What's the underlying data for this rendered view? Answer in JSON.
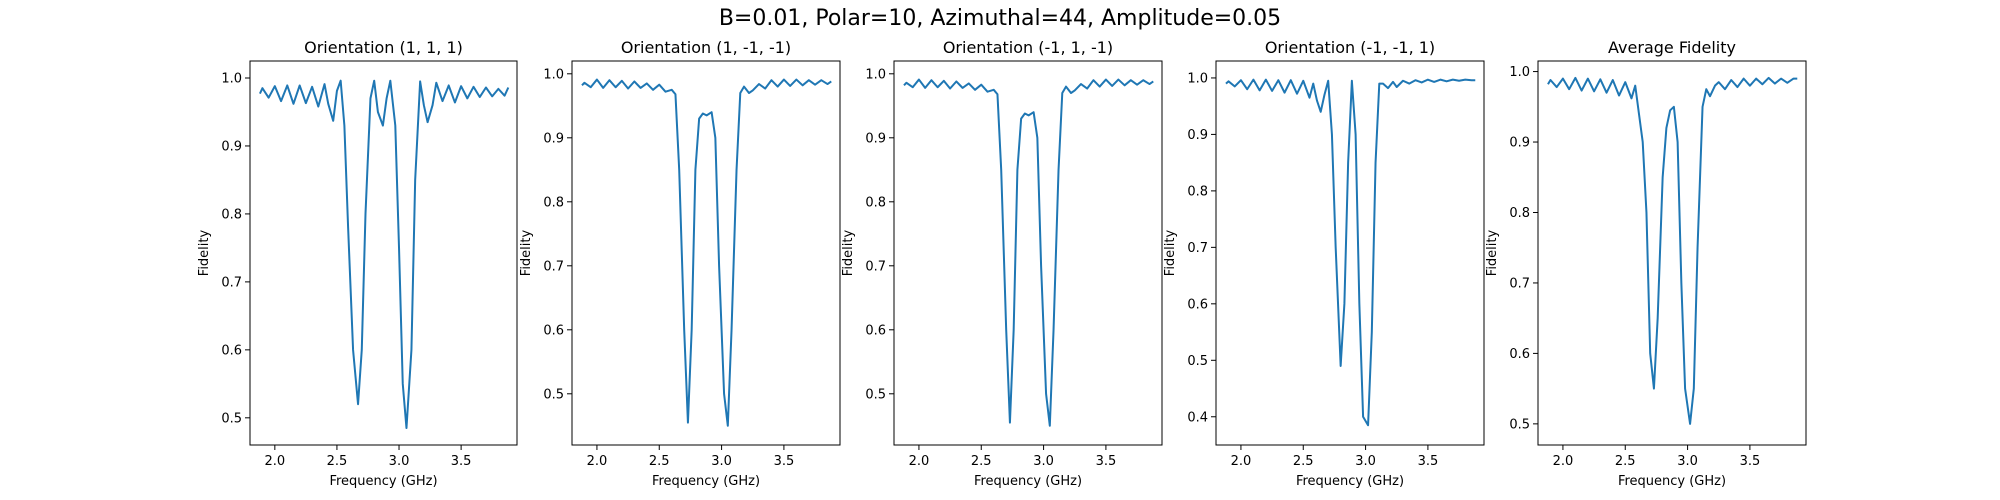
{
  "figure": {
    "suptitle": "B=0.01, Polar=10, Azimuthal=44, Amplitude=0.05"
  },
  "chart_data": [
    {
      "type": "line",
      "title": "Orientation (1, 1, 1)",
      "xlabel": "Frequency (GHz)",
      "ylabel": "Fidelity",
      "xlim": [
        1.8,
        3.95
      ],
      "ylim": [
        0.46,
        1.025
      ],
      "xticks": [
        "2.0",
        "2.5",
        "3.0",
        "3.5"
      ],
      "yticks": [
        "0.5",
        "0.6",
        "0.7",
        "0.8",
        "0.9",
        "1.0"
      ],
      "color": "#1f77b4",
      "x": [
        1.88,
        1.9,
        1.95,
        2.0,
        2.05,
        2.1,
        2.15,
        2.2,
        2.25,
        2.3,
        2.35,
        2.4,
        2.43,
        2.47,
        2.5,
        2.53,
        2.56,
        2.59,
        2.63,
        2.67,
        2.7,
        2.73,
        2.77,
        2.8,
        2.83,
        2.87,
        2.9,
        2.93,
        2.97,
        3.0,
        3.03,
        3.06,
        3.1,
        3.13,
        3.17,
        3.2,
        3.23,
        3.27,
        3.3,
        3.35,
        3.4,
        3.45,
        3.5,
        3.55,
        3.6,
        3.65,
        3.7,
        3.75,
        3.8,
        3.85,
        3.88
      ],
      "y": [
        0.977,
        0.985,
        0.971,
        0.988,
        0.966,
        0.989,
        0.962,
        0.989,
        0.963,
        0.987,
        0.958,
        0.991,
        0.962,
        0.937,
        0.981,
        0.996,
        0.93,
        0.78,
        0.6,
        0.52,
        0.6,
        0.8,
        0.97,
        0.996,
        0.95,
        0.93,
        0.97,
        0.996,
        0.93,
        0.75,
        0.55,
        0.485,
        0.6,
        0.85,
        0.995,
        0.96,
        0.935,
        0.96,
        0.993,
        0.966,
        0.989,
        0.964,
        0.988,
        0.97,
        0.987,
        0.972,
        0.986,
        0.973,
        0.984,
        0.974,
        0.986
      ]
    },
    {
      "type": "line",
      "title": "Orientation (1, -1, -1)",
      "xlabel": "Frequency (GHz)",
      "ylabel": "Fidelity",
      "xlim": [
        1.8,
        3.95
      ],
      "ylim": [
        0.42,
        1.02
      ],
      "xticks": [
        "2.0",
        "2.5",
        "3.0",
        "3.5"
      ],
      "yticks": [
        "0.5",
        "0.6",
        "0.7",
        "0.8",
        "0.9",
        "1.0"
      ],
      "color": "#1f77b4",
      "x": [
        1.88,
        1.9,
        1.95,
        2.0,
        2.05,
        2.1,
        2.15,
        2.2,
        2.25,
        2.3,
        2.35,
        2.4,
        2.45,
        2.5,
        2.55,
        2.6,
        2.63,
        2.66,
        2.7,
        2.73,
        2.76,
        2.79,
        2.82,
        2.85,
        2.88,
        2.92,
        2.95,
        2.98,
        3.02,
        3.05,
        3.08,
        3.12,
        3.15,
        3.18,
        3.22,
        3.25,
        3.3,
        3.35,
        3.4,
        3.45,
        3.5,
        3.55,
        3.6,
        3.65,
        3.7,
        3.75,
        3.8,
        3.85,
        3.88
      ],
      "y": [
        0.982,
        0.986,
        0.979,
        0.991,
        0.978,
        0.99,
        0.979,
        0.989,
        0.977,
        0.988,
        0.978,
        0.985,
        0.975,
        0.983,
        0.972,
        0.975,
        0.968,
        0.85,
        0.6,
        0.455,
        0.6,
        0.85,
        0.93,
        0.938,
        0.935,
        0.94,
        0.9,
        0.7,
        0.5,
        0.45,
        0.6,
        0.85,
        0.97,
        0.98,
        0.97,
        0.974,
        0.984,
        0.977,
        0.99,
        0.98,
        0.991,
        0.981,
        0.991,
        0.982,
        0.99,
        0.983,
        0.99,
        0.984,
        0.988
      ]
    },
    {
      "type": "line",
      "title": "Orientation (-1, 1, -1)",
      "xlabel": "Frequency (GHz)",
      "ylabel": "Fidelity",
      "xlim": [
        1.8,
        3.95
      ],
      "ylim": [
        0.42,
        1.02
      ],
      "xticks": [
        "2.0",
        "2.5",
        "3.0",
        "3.5"
      ],
      "yticks": [
        "0.5",
        "0.6",
        "0.7",
        "0.8",
        "0.9",
        "1.0"
      ],
      "color": "#1f77b4",
      "x": [
        1.88,
        1.9,
        1.95,
        2.0,
        2.05,
        2.1,
        2.15,
        2.2,
        2.25,
        2.3,
        2.35,
        2.4,
        2.45,
        2.5,
        2.55,
        2.6,
        2.63,
        2.66,
        2.7,
        2.73,
        2.76,
        2.79,
        2.82,
        2.85,
        2.88,
        2.92,
        2.95,
        2.98,
        3.02,
        3.05,
        3.08,
        3.12,
        3.15,
        3.18,
        3.22,
        3.25,
        3.3,
        3.35,
        3.4,
        3.45,
        3.5,
        3.55,
        3.6,
        3.65,
        3.7,
        3.75,
        3.8,
        3.85,
        3.88
      ],
      "y": [
        0.982,
        0.986,
        0.979,
        0.991,
        0.978,
        0.99,
        0.979,
        0.989,
        0.977,
        0.988,
        0.978,
        0.985,
        0.975,
        0.983,
        0.972,
        0.975,
        0.968,
        0.85,
        0.6,
        0.455,
        0.6,
        0.85,
        0.93,
        0.938,
        0.935,
        0.94,
        0.9,
        0.7,
        0.5,
        0.45,
        0.6,
        0.85,
        0.97,
        0.98,
        0.97,
        0.974,
        0.984,
        0.977,
        0.99,
        0.98,
        0.991,
        0.981,
        0.991,
        0.982,
        0.99,
        0.983,
        0.99,
        0.984,
        0.988
      ]
    },
    {
      "type": "line",
      "title": "Orientation (-1, -1, 1)",
      "xlabel": "Frequency (GHz)",
      "ylabel": "Fidelity",
      "xlim": [
        1.8,
        3.95
      ],
      "ylim": [
        0.35,
        1.03
      ],
      "xticks": [
        "2.0",
        "2.5",
        "3.0",
        "3.5"
      ],
      "yticks": [
        "0.4",
        "0.5",
        "0.6",
        "0.7",
        "0.8",
        "0.9",
        "1.0"
      ],
      "color": "#1f77b4",
      "x": [
        1.88,
        1.9,
        1.95,
        2.0,
        2.05,
        2.1,
        2.15,
        2.2,
        2.25,
        2.3,
        2.35,
        2.4,
        2.45,
        2.5,
        2.55,
        2.58,
        2.61,
        2.64,
        2.67,
        2.7,
        2.73,
        2.76,
        2.8,
        2.83,
        2.86,
        2.89,
        2.92,
        2.95,
        2.98,
        3.02,
        3.05,
        3.08,
        3.11,
        3.14,
        3.18,
        3.22,
        3.25,
        3.3,
        3.35,
        3.4,
        3.45,
        3.5,
        3.55,
        3.6,
        3.65,
        3.7,
        3.75,
        3.8,
        3.85,
        3.88
      ],
      "y": [
        0.99,
        0.994,
        0.985,
        0.996,
        0.98,
        0.997,
        0.978,
        0.997,
        0.977,
        0.996,
        0.974,
        0.996,
        0.972,
        0.995,
        0.965,
        0.99,
        0.96,
        0.94,
        0.97,
        0.995,
        0.9,
        0.7,
        0.49,
        0.6,
        0.85,
        0.995,
        0.9,
        0.6,
        0.4,
        0.385,
        0.55,
        0.85,
        0.99,
        0.99,
        0.982,
        0.993,
        0.984,
        0.995,
        0.99,
        0.996,
        0.992,
        0.997,
        0.993,
        0.997,
        0.994,
        0.997,
        0.995,
        0.997,
        0.996,
        0.996
      ]
    },
    {
      "type": "line",
      "title": "Average Fidelity",
      "xlabel": "Frequency (GHz)",
      "ylabel": "Fidelity",
      "xlim": [
        1.8,
        3.95
      ],
      "ylim": [
        0.47,
        1.015
      ],
      "xticks": [
        "2.0",
        "2.5",
        "3.0",
        "3.5"
      ],
      "yticks": [
        "0.5",
        "0.6",
        "0.7",
        "0.8",
        "0.9",
        "1.0"
      ],
      "color": "#1f77b4",
      "x": [
        1.88,
        1.9,
        1.95,
        2.0,
        2.05,
        2.1,
        2.15,
        2.2,
        2.25,
        2.3,
        2.35,
        2.4,
        2.45,
        2.5,
        2.55,
        2.58,
        2.61,
        2.64,
        2.67,
        2.7,
        2.73,
        2.76,
        2.8,
        2.83,
        2.86,
        2.89,
        2.92,
        2.95,
        2.98,
        3.02,
        3.05,
        3.08,
        3.12,
        3.15,
        3.18,
        3.22,
        3.25,
        3.3,
        3.35,
        3.4,
        3.45,
        3.5,
        3.55,
        3.6,
        3.65,
        3.7,
        3.75,
        3.8,
        3.85,
        3.88
      ],
      "y": [
        0.982,
        0.988,
        0.978,
        0.99,
        0.975,
        0.991,
        0.973,
        0.99,
        0.972,
        0.989,
        0.97,
        0.988,
        0.966,
        0.985,
        0.962,
        0.98,
        0.94,
        0.9,
        0.8,
        0.6,
        0.55,
        0.65,
        0.85,
        0.92,
        0.945,
        0.95,
        0.9,
        0.7,
        0.55,
        0.5,
        0.55,
        0.75,
        0.95,
        0.975,
        0.965,
        0.98,
        0.985,
        0.975,
        0.988,
        0.978,
        0.99,
        0.98,
        0.99,
        0.982,
        0.991,
        0.983,
        0.99,
        0.984,
        0.99,
        0.99
      ]
    }
  ]
}
